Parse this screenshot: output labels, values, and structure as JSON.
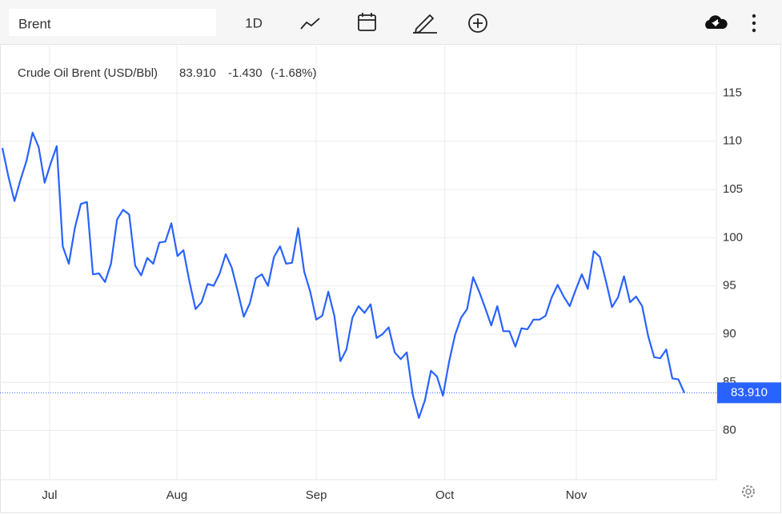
{
  "toolbar": {
    "symbol": "Brent",
    "interval": "1D"
  },
  "chart_data": {
    "type": "line",
    "series": [
      {
        "name": "Crude Oil Brent (USD/Bbl)",
        "color": "#2962ff",
        "values": [
          109.3,
          106.3,
          103.8,
          106.0,
          108.0,
          110.9,
          109.4,
          105.7,
          107.7,
          109.5,
          99.1,
          97.3,
          101.0,
          103.5,
          103.7,
          96.2,
          96.3,
          95.4,
          97.3,
          101.9,
          102.9,
          102.4,
          97.1,
          96.1,
          97.9,
          97.3,
          99.5,
          99.6,
          101.5,
          98.1,
          98.7,
          95.4,
          92.6,
          93.3,
          95.2,
          95.0,
          96.3,
          98.3,
          96.9,
          94.4,
          91.8,
          93.2,
          95.8,
          96.2,
          95.0,
          98.0,
          99.1,
          97.3,
          97.4,
          101.0,
          96.5,
          94.4,
          91.5,
          91.9,
          94.4,
          91.9,
          87.2,
          88.4,
          91.7,
          92.9,
          92.2,
          93.1,
          89.6,
          90.0,
          90.7,
          88.1,
          87.4,
          88.1,
          83.7,
          81.3,
          83.1,
          86.2,
          85.6,
          83.6,
          87.1,
          89.9,
          91.7,
          92.6,
          95.9,
          94.4,
          92.7,
          90.9,
          92.9,
          90.3,
          90.3,
          88.7,
          90.6,
          90.5,
          91.5,
          91.5,
          91.9,
          93.8,
          95.1,
          93.9,
          92.9,
          94.6,
          96.2,
          94.7,
          98.6,
          98.0,
          95.5,
          92.8,
          93.8,
          96.0,
          93.3,
          93.9,
          92.9,
          89.8,
          87.6,
          87.5,
          88.4,
          85.4,
          85.3,
          83.91
        ]
      }
    ],
    "last_value": {
      "value": 83.91,
      "label": "83.910"
    },
    "change": {
      "value": -1.43,
      "label": "-1.430"
    },
    "change_percent": {
      "value": -1.68,
      "label": "(-1.68%)"
    },
    "change_color": "#f23645",
    "ylim": [
      74.9,
      120.1
    ],
    "yticks": [
      80,
      85,
      90,
      95,
      100,
      105,
      110,
      115
    ],
    "xlim": [
      -0.4,
      118.3
    ],
    "xticks": [
      {
        "value": 7.8,
        "label": "Jul"
      },
      {
        "value": 28.9,
        "label": "Aug"
      },
      {
        "value": 52.0,
        "label": "Sep"
      },
      {
        "value": 73.3,
        "label": "Oct"
      },
      {
        "value": 95.1,
        "label": "Nov"
      }
    ],
    "grid": true
  }
}
